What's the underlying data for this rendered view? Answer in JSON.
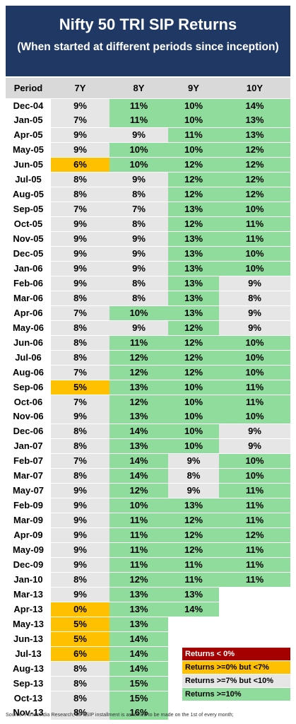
{
  "chart_data": {
    "type": "table",
    "title": "Nifty 50 TRI SIP Returns",
    "subtitle": "(When started at different periods since inception)",
    "columns": [
      "Period",
      "7Y",
      "8Y",
      "9Y",
      "10Y"
    ],
    "rows": [
      {
        "period": "Dec-04",
        "values": [
          "9%",
          "11%",
          "10%",
          "14%"
        ]
      },
      {
        "period": "Jan-05",
        "values": [
          "7%",
          "11%",
          "10%",
          "13%"
        ]
      },
      {
        "period": "Apr-05",
        "values": [
          "9%",
          "9%",
          "11%",
          "13%"
        ]
      },
      {
        "period": "May-05",
        "values": [
          "9%",
          "10%",
          "10%",
          "12%"
        ]
      },
      {
        "period": "Jun-05",
        "values": [
          "6%",
          "10%",
          "12%",
          "12%"
        ]
      },
      {
        "period": "Jul-05",
        "values": [
          "8%",
          "9%",
          "12%",
          "12%"
        ]
      },
      {
        "period": "Aug-05",
        "values": [
          "8%",
          "8%",
          "12%",
          "12%"
        ]
      },
      {
        "period": "Sep-05",
        "values": [
          "7%",
          "7%",
          "13%",
          "10%"
        ]
      },
      {
        "period": "Oct-05",
        "values": [
          "9%",
          "8%",
          "12%",
          "11%"
        ]
      },
      {
        "period": "Nov-05",
        "values": [
          "9%",
          "9%",
          "13%",
          "11%"
        ]
      },
      {
        "period": "Dec-05",
        "values": [
          "9%",
          "9%",
          "13%",
          "10%"
        ]
      },
      {
        "period": "Jan-06",
        "values": [
          "9%",
          "9%",
          "13%",
          "10%"
        ]
      },
      {
        "period": "Feb-06",
        "values": [
          "9%",
          "8%",
          "13%",
          "9%"
        ]
      },
      {
        "period": "Mar-06",
        "values": [
          "8%",
          "8%",
          "13%",
          "8%"
        ]
      },
      {
        "period": "Apr-06",
        "values": [
          "7%",
          "10%",
          "13%",
          "9%"
        ]
      },
      {
        "period": "May-06",
        "values": [
          "8%",
          "9%",
          "12%",
          "9%"
        ]
      },
      {
        "period": "Jun-06",
        "values": [
          "8%",
          "11%",
          "12%",
          "10%"
        ]
      },
      {
        "period": "Jul-06",
        "values": [
          "8%",
          "12%",
          "12%",
          "10%"
        ]
      },
      {
        "period": "Aug-06",
        "values": [
          "7%",
          "12%",
          "12%",
          "10%"
        ]
      },
      {
        "period": "Sep-06",
        "values": [
          "5%",
          "13%",
          "10%",
          "11%"
        ]
      },
      {
        "period": "Oct-06",
        "values": [
          "7%",
          "12%",
          "10%",
          "11%"
        ]
      },
      {
        "period": "Nov-06",
        "values": [
          "9%",
          "13%",
          "10%",
          "10%"
        ]
      },
      {
        "period": "Dec-06",
        "values": [
          "8%",
          "14%",
          "10%",
          "9%"
        ]
      },
      {
        "period": "Jan-07",
        "values": [
          "8%",
          "13%",
          "10%",
          "9%"
        ]
      },
      {
        "period": "Feb-07",
        "values": [
          "7%",
          "14%",
          "9%",
          "10%"
        ]
      },
      {
        "period": "Mar-07",
        "values": [
          "8%",
          "14%",
          "8%",
          "10%"
        ]
      },
      {
        "period": "May-07",
        "values": [
          "9%",
          "12%",
          "9%",
          "11%"
        ]
      },
      {
        "period": "Feb-09",
        "values": [
          "9%",
          "10%",
          "13%",
          "11%"
        ]
      },
      {
        "period": "Mar-09",
        "values": [
          "9%",
          "11%",
          "12%",
          "11%"
        ]
      },
      {
        "period": "Apr-09",
        "values": [
          "9%",
          "11%",
          "12%",
          "12%"
        ]
      },
      {
        "period": "May-09",
        "values": [
          "9%",
          "11%",
          "12%",
          "11%"
        ]
      },
      {
        "period": "Dec-09",
        "values": [
          "9%",
          "11%",
          "11%",
          "11%"
        ]
      },
      {
        "period": "Jan-10",
        "values": [
          "8%",
          "12%",
          "11%",
          "11%"
        ]
      },
      {
        "period": "Mar-13",
        "values": [
          "9%",
          "13%",
          "13%",
          ""
        ]
      },
      {
        "period": "Apr-13",
        "values": [
          "0%",
          "13%",
          "14%",
          ""
        ]
      },
      {
        "period": "May-13",
        "values": [
          "5%",
          "13%",
          "",
          ""
        ]
      },
      {
        "period": "Jun-13",
        "values": [
          "5%",
          "14%",
          "",
          ""
        ]
      },
      {
        "period": "Jul-13",
        "values": [
          "6%",
          "14%",
          "",
          ""
        ]
      },
      {
        "period": "Aug-13",
        "values": [
          "8%",
          "14%",
          "",
          ""
        ]
      },
      {
        "period": "Sep-13",
        "values": [
          "8%",
          "15%",
          "",
          ""
        ]
      },
      {
        "period": "Oct-13",
        "values": [
          "8%",
          "15%",
          "",
          ""
        ]
      },
      {
        "period": "Nov-13",
        "values": [
          "8%",
          "16%",
          "",
          ""
        ]
      }
    ],
    "legend": [
      {
        "label": "Returns < 0%",
        "color": "#a50000",
        "text_color": "#ffffff"
      },
      {
        "label": "Returns >=0% but <7%",
        "color": "#ffc000",
        "text_color": "#000000"
      },
      {
        "label": "Returns >=7% but <10%",
        "color": "#e7e6e6",
        "text_color": "#000000"
      },
      {
        "label": "Returns >=10%",
        "color": "#8fdc9d",
        "text_color": "#000000"
      }
    ],
    "colors": {
      "header_bg": "#1f3864",
      "column_header_bg": "#d9d9d9",
      "row_bg": "#ffffff"
    },
    "source": "Source: FundsIndia Research, MFI;SIP installment is assumed to be made on the 1st of every month;"
  }
}
